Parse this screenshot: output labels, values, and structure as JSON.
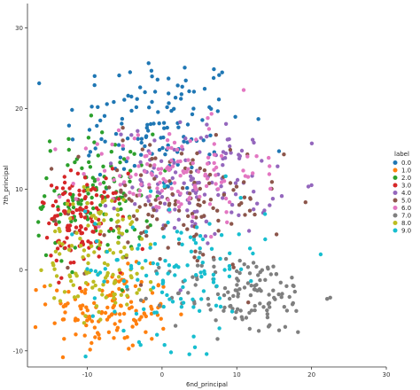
{
  "chart_data": {
    "type": "scatter",
    "xlabel": "6nd_principal",
    "ylabel": "7th_principal",
    "xlim": [
      -18,
      30
    ],
    "ylim": [
      -12,
      33
    ],
    "x_ticks": [
      -10,
      0,
      10,
      20,
      30
    ],
    "y_ticks": [
      -10,
      0,
      10,
      20,
      30
    ],
    "legend": {
      "title": "label",
      "placement": "right",
      "entries": [
        "0.0",
        "1.0",
        "2.0",
        "3.0",
        "4.0",
        "5.0",
        "6.0",
        "7.0",
        "8.0",
        "9.0"
      ]
    },
    "colors": [
      "#1f77b4",
      "#ff7f0e",
      "#2ca02c",
      "#d62728",
      "#9467bd",
      "#8c564b",
      "#e377c2",
      "#7f7f7f",
      "#bcbd22",
      "#17becf"
    ],
    "series": [
      {
        "name": "0.0",
        "center": [
          -1,
          18
        ],
        "spread": [
          6,
          4.5
        ]
      },
      {
        "name": "1.0",
        "center": [
          -7,
          -5
        ],
        "spread": [
          4,
          2.5
        ]
      },
      {
        "name": "2.0",
        "center": [
          -9,
          9
        ],
        "spread": [
          4,
          4
        ]
      },
      {
        "name": "3.0",
        "center": [
          -11,
          6
        ],
        "spread": [
          3,
          3
        ]
      },
      {
        "name": "4.0",
        "center": [
          5,
          11
        ],
        "spread": [
          5,
          3.5
        ]
      },
      {
        "name": "5.0",
        "center": [
          2,
          8
        ],
        "spread": [
          7,
          4
        ]
      },
      {
        "name": "6.0",
        "center": [
          1,
          12
        ],
        "spread": [
          6,
          3
        ]
      },
      {
        "name": "7.0",
        "center": [
          11,
          -3
        ],
        "spread": [
          5,
          2.5
        ]
      },
      {
        "name": "8.0",
        "center": [
          -8,
          2
        ],
        "spread": [
          4,
          4
        ]
      },
      {
        "name": "9.0",
        "center": [
          2,
          0
        ],
        "spread": [
          6,
          4.5
        ]
      }
    ]
  }
}
